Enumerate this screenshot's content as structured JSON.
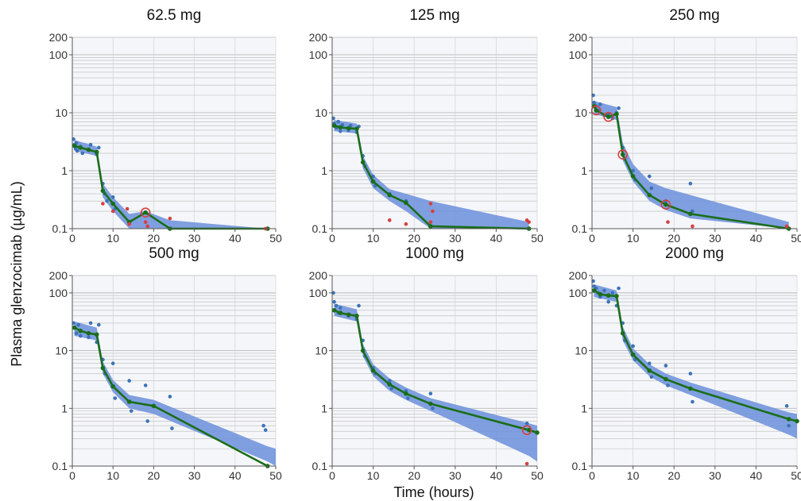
{
  "figure": {
    "ylabel": "Plasma glenzocimab (µg/mL)",
    "xlabel": "Time (hours)"
  },
  "colors": {
    "band": "#6f93dc",
    "line": "#1a6e1a",
    "obs": "#3b73b8",
    "bql": "#d64040",
    "grid": "#b9b9b9",
    "panel_bg": "#f5f6f9"
  },
  "chart_data": [
    {
      "type": "scatter",
      "title": "62.5 mg",
      "xlim": [
        0,
        50
      ],
      "ylim": [
        0.1,
        200
      ],
      "yscale": "log",
      "xticks": [
        0,
        10,
        20,
        30,
        40,
        50
      ],
      "yticks": [
        0.1,
        1,
        10,
        100,
        200
      ],
      "series": [
        {
          "role": "median_line",
          "x": [
            0.5,
            2,
            4,
            6,
            7.5,
            10,
            14,
            18,
            24,
            48
          ],
          "y": [
            2.7,
            2.5,
            2.3,
            2.1,
            0.45,
            0.27,
            0.13,
            0.19,
            0.1,
            0.1
          ]
        },
        {
          "role": "prediction_band",
          "x": [
            0.5,
            6,
            7.5,
            10,
            14,
            18,
            24,
            48
          ],
          "lo": [
            2.2,
            1.8,
            0.35,
            0.2,
            0.1,
            0.1,
            0.1,
            0.1
          ],
          "hi": [
            3.4,
            2.6,
            0.6,
            0.35,
            0.18,
            0.2,
            0.14,
            0.1
          ]
        },
        {
          "role": "observed",
          "x": [
            0.3,
            0.5,
            0.8,
            1,
            1.2,
            2,
            2.5,
            4,
            4.5,
            6,
            6.5,
            7.5,
            8,
            8.5,
            10,
            10.5
          ],
          "y": [
            3.5,
            2.8,
            2.4,
            3.0,
            2.2,
            2.6,
            2.0,
            2.3,
            2.8,
            1.9,
            2.5,
            0.6,
            0.4,
            0.3,
            0.35,
            0.22
          ]
        },
        {
          "role": "bql",
          "x": [
            7.5,
            10,
            13.5,
            14,
            18,
            18.5,
            24,
            47.5
          ],
          "y": [
            0.27,
            0.2,
            0.22,
            0.12,
            0.13,
            0.11,
            0.15,
            0.1
          ]
        },
        {
          "role": "outlier_circle",
          "x": [
            18
          ],
          "y": [
            0.19
          ]
        }
      ]
    },
    {
      "type": "scatter",
      "title": "125 mg",
      "xlim": [
        0,
        50
      ],
      "ylim": [
        0.1,
        200
      ],
      "yscale": "log",
      "xticks": [
        0,
        10,
        20,
        30,
        40,
        50
      ],
      "yticks": [
        0.1,
        1,
        10,
        100,
        200
      ],
      "series": [
        {
          "role": "median_line",
          "x": [
            0.5,
            2,
            4,
            6,
            7.5,
            10,
            14,
            18,
            24,
            48
          ],
          "y": [
            6.0,
            5.6,
            5.4,
            5.3,
            1.4,
            0.65,
            0.38,
            0.28,
            0.11,
            0.1
          ]
        },
        {
          "role": "prediction_band",
          "x": [
            0.5,
            6,
            7.5,
            10,
            14,
            18,
            24,
            48
          ],
          "lo": [
            4.8,
            4.4,
            1.1,
            0.5,
            0.3,
            0.2,
            0.1,
            0.1
          ],
          "hi": [
            7.5,
            6.5,
            1.8,
            0.85,
            0.48,
            0.4,
            0.3,
            0.13
          ]
        },
        {
          "role": "observed",
          "x": [
            0.3,
            0.5,
            1,
            1.5,
            2,
            2.5,
            4,
            4.5,
            6,
            6.5,
            7.5,
            8,
            10,
            10.5,
            14,
            18
          ],
          "y": [
            8.0,
            6.5,
            5.5,
            7.0,
            4.8,
            6.2,
            5.0,
            6.0,
            4.6,
            5.8,
            1.8,
            1.2,
            0.8,
            0.55,
            0.4,
            0.3
          ]
        },
        {
          "role": "bql",
          "x": [
            14,
            18,
            24,
            24.5,
            24,
            47.5,
            48
          ],
          "y": [
            0.14,
            0.12,
            0.27,
            0.2,
            0.13,
            0.14,
            0.13
          ]
        }
      ]
    },
    {
      "type": "scatter",
      "title": "250 mg",
      "xlim": [
        0,
        50
      ],
      "ylim": [
        0.1,
        200
      ],
      "yscale": "log",
      "xticks": [
        0,
        10,
        20,
        30,
        40,
        50
      ],
      "yticks": [
        0.1,
        1,
        10,
        100,
        200
      ],
      "series": [
        {
          "role": "median_line",
          "x": [
            0.5,
            1,
            4,
            6,
            7.5,
            10,
            14,
            18,
            24,
            48
          ],
          "y": [
            13,
            11,
            8.5,
            9.5,
            1.9,
            0.8,
            0.38,
            0.26,
            0.18,
            0.1
          ]
        },
        {
          "role": "prediction_band",
          "x": [
            0.5,
            6,
            7.5,
            10,
            14,
            18,
            24,
            48
          ],
          "lo": [
            9.5,
            7.5,
            1.5,
            0.65,
            0.3,
            0.21,
            0.15,
            0.1
          ],
          "hi": [
            16,
            12.5,
            3.0,
            1.3,
            0.65,
            0.5,
            0.38,
            0.13
          ]
        },
        {
          "role": "observed",
          "x": [
            0.3,
            0.5,
            1,
            1.5,
            2,
            3,
            4,
            5,
            6,
            6.5,
            7.5,
            8,
            10,
            10.5,
            14,
            14.5,
            18,
            24,
            24.5
          ],
          "y": [
            20,
            15,
            13,
            11,
            14,
            9,
            9.5,
            8,
            10,
            12,
            2.5,
            1.6,
            1.0,
            0.7,
            0.8,
            0.5,
            0.3,
            0.6,
            0.2
          ]
        },
        {
          "role": "bql",
          "x": [
            18.5,
            24.5,
            47.5
          ],
          "y": [
            0.13,
            0.11,
            0.11
          ]
        },
        {
          "role": "outlier_circle",
          "x": [
            1,
            4,
            7.5,
            18
          ],
          "y": [
            11,
            8.5,
            1.9,
            0.26
          ]
        }
      ]
    },
    {
      "type": "scatter",
      "title": "500 mg",
      "xlim": [
        0,
        50
      ],
      "ylim": [
        0.1,
        200
      ],
      "yscale": "log",
      "xticks": [
        0,
        10,
        20,
        30,
        40,
        50
      ],
      "yticks": [
        0.1,
        1,
        10,
        100,
        200
      ],
      "series": [
        {
          "role": "median_line",
          "x": [
            0.5,
            2,
            4,
            6,
            7.5,
            10,
            14,
            20,
            48
          ],
          "y": [
            25,
            22,
            20,
            19,
            5.0,
            2.4,
            1.3,
            1.1,
            0.09
          ]
        },
        {
          "role": "prediction_band",
          "x": [
            0.5,
            6,
            7.5,
            10,
            14,
            20,
            48,
            50
          ],
          "lo": [
            18,
            15,
            4.0,
            1.9,
            1.0,
            0.8,
            0.12,
            0.1
          ],
          "hi": [
            32,
            25,
            6.5,
            3.1,
            1.7,
            1.4,
            0.22,
            0.2
          ]
        },
        {
          "role": "observed",
          "x": [
            0.3,
            0.5,
            1,
            1.5,
            2,
            4,
            4.5,
            6,
            6.5,
            7.5,
            8,
            10,
            10.5,
            14,
            14.5,
            18,
            18.5,
            24,
            24.5,
            47,
            47.5
          ],
          "y": [
            30,
            25,
            20,
            28,
            18,
            17,
            30,
            14,
            28,
            7,
            4,
            6,
            1.5,
            3,
            0.9,
            2.5,
            0.6,
            1.6,
            0.45,
            0.5,
            0.42
          ]
        }
      ]
    },
    {
      "type": "scatter",
      "title": "1000 mg",
      "xlim": [
        0,
        50
      ],
      "ylim": [
        0.1,
        200
      ],
      "yscale": "log",
      "xticks": [
        0,
        10,
        20,
        30,
        40,
        50
      ],
      "yticks": [
        0.1,
        1,
        10,
        100,
        200
      ],
      "series": [
        {
          "role": "median_line",
          "x": [
            0.5,
            2,
            4,
            6,
            7.5,
            10,
            14,
            18,
            24,
            48,
            50
          ],
          "y": [
            50,
            45,
            42,
            40,
            10,
            4.5,
            2.6,
            1.8,
            1.2,
            0.42,
            0.38
          ]
        },
        {
          "role": "prediction_band",
          "x": [
            0.5,
            6,
            7.5,
            10,
            14,
            18,
            24,
            48,
            50
          ],
          "lo": [
            40,
            32,
            8.0,
            3.6,
            2.0,
            1.4,
            0.9,
            0.15,
            0.12
          ],
          "hi": [
            65,
            52,
            13,
            5.8,
            3.3,
            2.3,
            1.5,
            0.55,
            0.5
          ]
        },
        {
          "role": "observed",
          "x": [
            0.3,
            0.5,
            1,
            1.5,
            2,
            4,
            6,
            6.5,
            7.5,
            8,
            10,
            10.5,
            14,
            14.5,
            18,
            18.5,
            24,
            24.5,
            47.5
          ],
          "y": [
            100,
            70,
            60,
            45,
            55,
            40,
            35,
            60,
            15,
            8,
            5,
            4,
            3,
            2.2,
            2.0,
            1.5,
            1.8,
            1.0,
            0.55
          ]
        },
        {
          "role": "bql",
          "x": [
            47.5
          ],
          "y": [
            0.11
          ]
        },
        {
          "role": "outlier_circle",
          "x": [
            47.5
          ],
          "y": [
            0.42
          ]
        }
      ]
    },
    {
      "type": "scatter",
      "title": "2000 mg",
      "xlim": [
        0,
        50
      ],
      "ylim": [
        0.1,
        200
      ],
      "yscale": "log",
      "xticks": [
        0,
        10,
        20,
        30,
        40,
        50
      ],
      "yticks": [
        0.1,
        1,
        10,
        100,
        200
      ],
      "series": [
        {
          "role": "median_line",
          "x": [
            0.5,
            2,
            4,
            6,
            7.5,
            10,
            14,
            18,
            24,
            48,
            50
          ],
          "y": [
            110,
            95,
            90,
            88,
            20,
            8.5,
            4.5,
            3.2,
            2.2,
            0.65,
            0.6
          ]
        },
        {
          "role": "prediction_band",
          "x": [
            0.5,
            6,
            7.5,
            10,
            14,
            18,
            24,
            48,
            50
          ],
          "lo": [
            85,
            70,
            15,
            6.8,
            3.6,
            2.5,
            1.7,
            0.35,
            0.3
          ],
          "hi": [
            140,
            110,
            26,
            11,
            5.8,
            4.0,
            2.8,
            0.85,
            0.8
          ]
        },
        {
          "role": "observed",
          "x": [
            0.3,
            0.5,
            1,
            1.5,
            2,
            3,
            4,
            5,
            6,
            6.5,
            7.5,
            8,
            10,
            10.5,
            14,
            14.5,
            18,
            18.5,
            24,
            24.5,
            47.5,
            48
          ],
          "y": [
            160,
            130,
            120,
            100,
            85,
            110,
            70,
            100,
            60,
            120,
            30,
            15,
            12,
            7,
            6,
            3.5,
            5.5,
            2.5,
            4,
            1.3,
            1.1,
            0.5
          ]
        }
      ]
    }
  ]
}
